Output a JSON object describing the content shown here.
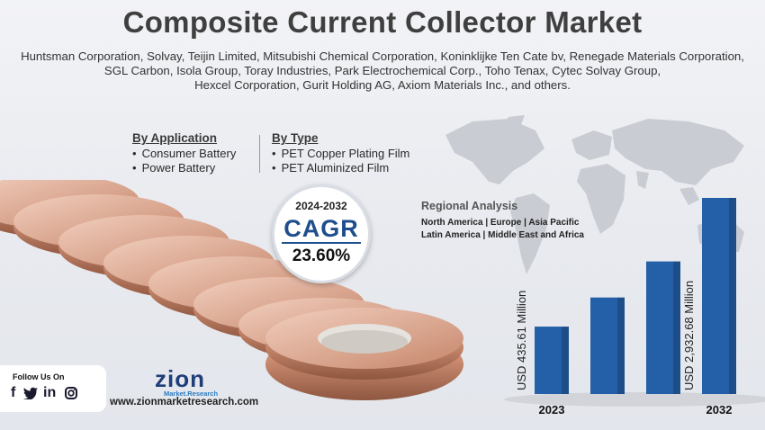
{
  "title": "Composite Current Collector Market",
  "companies": [
    "Huntsman Corporation, Solvay, Teijin Limited, Mitsubishi Chemical Corporation, Koninklijke Ten Cate bv, Renegade Materials Corporation,",
    "SGL Carbon, Isola Group, Toray Industries, Park Electrochemical Corp., Toho Tenax, Cytec Solvay Group,",
    "Hexcel Corporation, Gurit Holding AG, Axiom Materials Inc., and others."
  ],
  "segments": {
    "application": {
      "heading": "By Application",
      "items": [
        "Consumer Battery",
        "Power Battery"
      ]
    },
    "type": {
      "heading": "By Type",
      "items": [
        "PET Copper Plating Film",
        "PET Aluminized Film"
      ]
    }
  },
  "cagr": {
    "period": "2024-2032",
    "label": "CAGR",
    "value": "23.60%"
  },
  "regional": {
    "heading": "Regional Analysis",
    "line1": "North America | Europe | Asia Pacific",
    "line2": "Latin America | Middle East and Africa"
  },
  "chart_data": {
    "type": "bar",
    "categories": [
      "2023",
      "",
      "",
      "2032"
    ],
    "series": [
      {
        "values": [
          435.61,
          1000,
          1700,
          2932.68
        ]
      }
    ],
    "data_labels": [
      "USD 435.61 Million",
      "",
      "",
      "USD 2,932.68 Million"
    ],
    "bar_color": "#2460a7"
  },
  "footer": {
    "follow_label": "Follow Us On",
    "social": [
      "f",
      "twitter-icon",
      "in",
      "instagram-icon"
    ],
    "logo_word": "zion",
    "logo_sub": "Market.Research",
    "website": "www.zionmarketresearch.com"
  }
}
